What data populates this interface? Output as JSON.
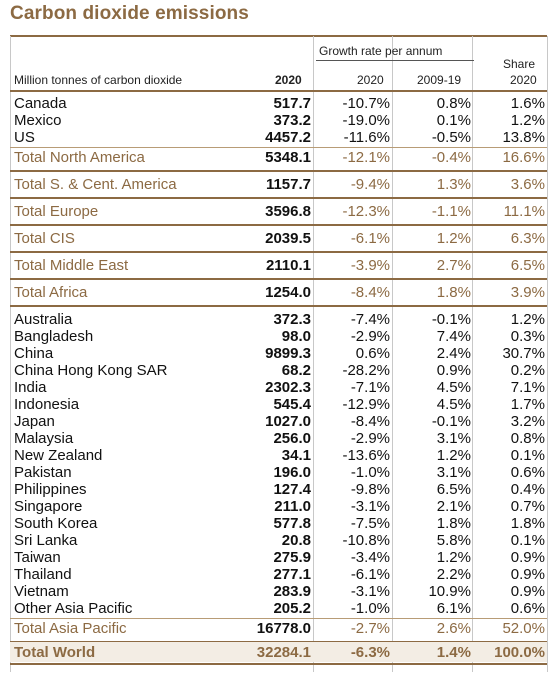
{
  "title": "Carbon dioxide emissions",
  "header": {
    "unit_label": "Million tonnes of carbon dioxide",
    "growth_group": "Growth rate per annum",
    "col_2020": "2020",
    "col_growth_2020": "2020",
    "col_growth_0919": "2009-19",
    "col_share_1": "Share",
    "col_share_2": "2020"
  },
  "groups": [
    {
      "rows": [
        {
          "name": "Canada",
          "v2020": "517.7",
          "g2020": "-10.7%",
          "g0919": "0.8%",
          "share": "1.6%"
        },
        {
          "name": "Mexico",
          "v2020": "373.2",
          "g2020": "-19.0%",
          "g0919": "0.1%",
          "share": "1.2%"
        },
        {
          "name": "US",
          "v2020": "4457.2",
          "g2020": "-11.6%",
          "g0919": "-0.5%",
          "share": "13.8%"
        }
      ],
      "total": {
        "name": "Total North America",
        "v2020": "5348.1",
        "g2020": "-12.1%",
        "g0919": "-0.4%",
        "share": "16.6%"
      }
    },
    {
      "rows": [],
      "total": {
        "name": "Total S. & Cent. America",
        "v2020": "1157.7",
        "g2020": "-9.4%",
        "g0919": "1.3%",
        "share": "3.6%"
      }
    },
    {
      "rows": [],
      "total": {
        "name": "Total Europe",
        "v2020": "3596.8",
        "g2020": "-12.3%",
        "g0919": "-1.1%",
        "share": "11.1%"
      }
    },
    {
      "rows": [],
      "total": {
        "name": "Total CIS",
        "v2020": "2039.5",
        "g2020": "-6.1%",
        "g0919": "1.2%",
        "share": "6.3%"
      }
    },
    {
      "rows": [],
      "total": {
        "name": "Total Middle East",
        "v2020": "2110.1",
        "g2020": "-3.9%",
        "g0919": "2.7%",
        "share": "6.5%"
      }
    },
    {
      "rows": [],
      "total": {
        "name": "Total Africa",
        "v2020": "1254.0",
        "g2020": "-8.4%",
        "g0919": "1.8%",
        "share": "3.9%"
      }
    },
    {
      "rows": [
        {
          "name": "Australia",
          "v2020": "372.3",
          "g2020": "-7.4%",
          "g0919": "-0.1%",
          "share": "1.2%"
        },
        {
          "name": "Bangladesh",
          "v2020": "98.0",
          "g2020": "-2.9%",
          "g0919": "7.4%",
          "share": "0.3%"
        },
        {
          "name": "China",
          "v2020": "9899.3",
          "g2020": "0.6%",
          "g0919": "2.4%",
          "share": "30.7%"
        },
        {
          "name": "China Hong Kong SAR",
          "v2020": "68.2",
          "g2020": "-28.2%",
          "g0919": "0.9%",
          "share": "0.2%"
        },
        {
          "name": "India",
          "v2020": "2302.3",
          "g2020": "-7.1%",
          "g0919": "4.5%",
          "share": "7.1%"
        },
        {
          "name": "Indonesia",
          "v2020": "545.4",
          "g2020": "-12.9%",
          "g0919": "4.5%",
          "share": "1.7%"
        },
        {
          "name": "Japan",
          "v2020": "1027.0",
          "g2020": "-8.4%",
          "g0919": "-0.1%",
          "share": "3.2%"
        },
        {
          "name": "Malaysia",
          "v2020": "256.0",
          "g2020": "-2.9%",
          "g0919": "3.1%",
          "share": "0.8%"
        },
        {
          "name": "New Zealand",
          "v2020": "34.1",
          "g2020": "-13.6%",
          "g0919": "1.2%",
          "share": "0.1%"
        },
        {
          "name": "Pakistan",
          "v2020": "196.0",
          "g2020": "-1.0%",
          "g0919": "3.1%",
          "share": "0.6%"
        },
        {
          "name": "Philippines",
          "v2020": "127.4",
          "g2020": "-9.8%",
          "g0919": "6.5%",
          "share": "0.4%"
        },
        {
          "name": "Singapore",
          "v2020": "211.0",
          "g2020": "-3.1%",
          "g0919": "2.1%",
          "share": "0.7%"
        },
        {
          "name": "South Korea",
          "v2020": "577.8",
          "g2020": "-7.5%",
          "g0919": "1.8%",
          "share": "1.8%"
        },
        {
          "name": "Sri Lanka",
          "v2020": "20.8",
          "g2020": "-10.8%",
          "g0919": "5.8%",
          "share": "0.1%"
        },
        {
          "name": "Taiwan",
          "v2020": "275.9",
          "g2020": "-3.4%",
          "g0919": "1.2%",
          "share": "0.9%"
        },
        {
          "name": "Thailand",
          "v2020": "277.1",
          "g2020": "-6.1%",
          "g0919": "2.2%",
          "share": "0.9%"
        },
        {
          "name": "Vietnam",
          "v2020": "283.9",
          "g2020": "-3.1%",
          "g0919": "10.9%",
          "share": "0.9%"
        },
        {
          "name": "Other Asia Pacific",
          "v2020": "205.2",
          "g2020": "-1.0%",
          "g0919": "6.1%",
          "share": "0.6%"
        }
      ],
      "total": {
        "name": "Total Asia Pacific",
        "v2020": "16778.0",
        "g2020": "-2.7%",
        "g0919": "2.6%",
        "share": "52.0%"
      }
    }
  ],
  "world": {
    "name": "Total World",
    "v2020": "32284.1",
    "g2020": "-6.3%",
    "g0919": "1.4%",
    "share": "100.0%"
  },
  "colors": {
    "accent": "#8c6a43",
    "band": "#f3ede4"
  }
}
